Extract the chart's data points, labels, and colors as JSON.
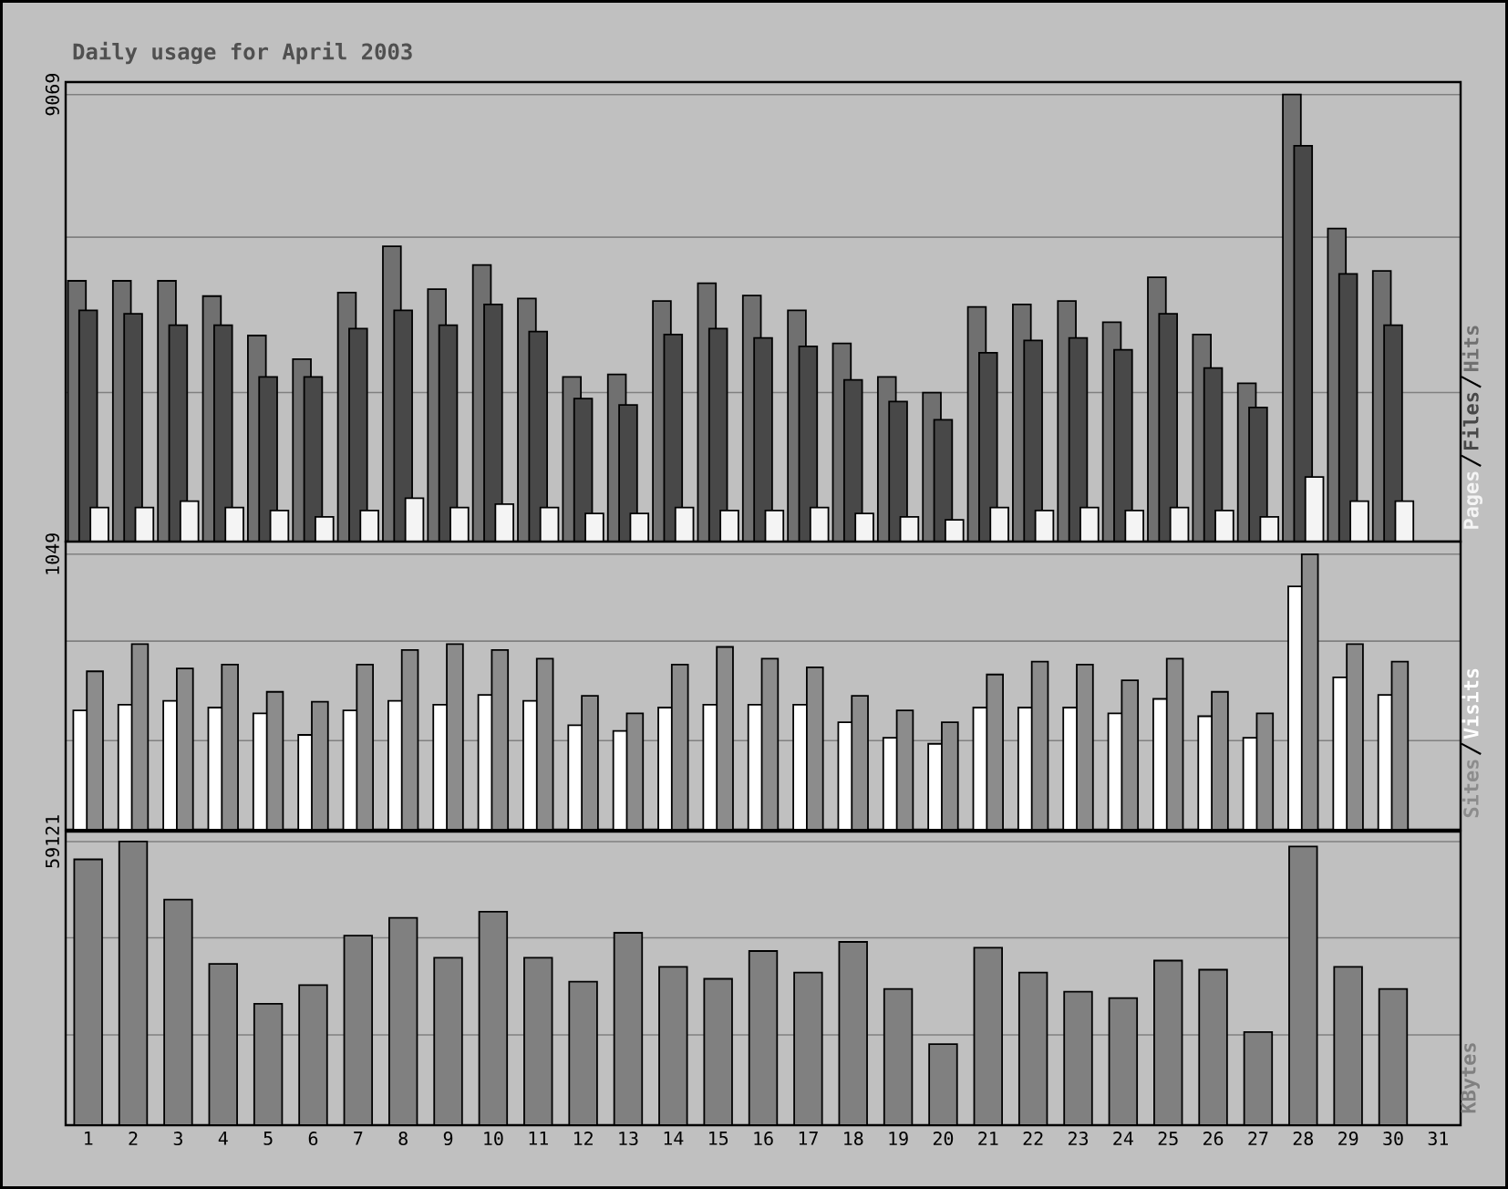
{
  "chart_data": [
    {
      "type": "bar",
      "title": "Daily usage for April 2003",
      "categories": [
        "1",
        "2",
        "3",
        "4",
        "5",
        "6",
        "7",
        "8",
        "9",
        "10",
        "11",
        "12",
        "13",
        "14",
        "15",
        "16",
        "17",
        "18",
        "19",
        "20",
        "21",
        "22",
        "23",
        "24",
        "25",
        "26",
        "27",
        "28",
        "29",
        "30",
        "31"
      ],
      "series": [
        {
          "name": "Hits",
          "color": "#707070",
          "values": [
            5290,
            5290,
            5290,
            4980,
            4180,
            3700,
            5050,
            5990,
            5120,
            5610,
            4930,
            3340,
            3390,
            4880,
            5240,
            4990,
            4690,
            4020,
            3340,
            3020,
            4760,
            4810,
            4880,
            4450,
            5360,
            4200,
            3210,
            9069,
            6350,
            5490,
            null
          ]
        },
        {
          "name": "Files",
          "color": "#484848",
          "values": [
            4690,
            4620,
            4390,
            4390,
            3340,
            3340,
            4320,
            4690,
            4390,
            4810,
            4260,
            2900,
            2770,
            4200,
            4320,
            4130,
            3960,
            3280,
            2840,
            2470,
            3830,
            4080,
            4130,
            3890,
            4620,
            3520,
            2720,
            8030,
            5430,
            4390,
            null
          ]
        },
        {
          "name": "Pages",
          "color": "#f4f4f4",
          "values": [
            690,
            690,
            820,
            690,
            630,
            500,
            630,
            880,
            690,
            760,
            690,
            570,
            570,
            690,
            630,
            630,
            690,
            570,
            500,
            440,
            690,
            630,
            690,
            630,
            690,
            630,
            500,
            1310,
            820,
            820,
            null
          ]
        }
      ],
      "ylim": [
        0,
        9323
      ],
      "yticks": [
        {
          "value": 0,
          "label": null
        },
        {
          "value": 3023,
          "label": null
        },
        {
          "value": 6175,
          "label": null
        },
        9069
      ],
      "grid": "y",
      "tick_labels": "y",
      "legend": "right"
    },
    {
      "type": "bar",
      "categories": [
        "1",
        "2",
        "3",
        "4",
        "5",
        "6",
        "7",
        "8",
        "9",
        "10",
        "11",
        "12",
        "13",
        "14",
        "15",
        "16",
        "17",
        "18",
        "19",
        "20",
        "21",
        "22",
        "23",
        "24",
        "25",
        "26",
        "27",
        "28",
        "29",
        "30",
        "31"
      ],
      "series": [
        {
          "name": "Visits",
          "color": "#ffffff",
          "values": [
            454,
            476,
            491,
            465,
            443,
            361,
            454,
            491,
            476,
            513,
            491,
            398,
            376,
            465,
            476,
            476,
            476,
            409,
            350,
            327,
            465,
            465,
            465,
            443,
            498,
            432,
            350,
            926,
            580,
            513,
            null
          ]
        },
        {
          "name": "Sites",
          "color": "#8c8c8c",
          "values": [
            603,
            707,
            614,
            629,
            525,
            487,
            629,
            684,
            707,
            684,
            651,
            510,
            443,
            629,
            696,
            651,
            618,
            510,
            454,
            409,
            591,
            640,
            629,
            569,
            651,
            525,
            443,
            1049,
            707,
            640,
            null
          ]
        }
      ],
      "ylim": [
        0,
        1097
      ],
      "yticks": [
        {
          "value": 0,
          "label": null
        },
        {
          "value": 339,
          "label": null
        },
        {
          "value": 718,
          "label": null
        },
        1049
      ],
      "grid": "y",
      "tick_labels": "y",
      "legend": "right"
    },
    {
      "type": "bar",
      "categories": [
        "1",
        "2",
        "3",
        "4",
        "5",
        "6",
        "7",
        "8",
        "9",
        "10",
        "11",
        "12",
        "13",
        "14",
        "15",
        "16",
        "17",
        "18",
        "19",
        "20",
        "21",
        "22",
        "23",
        "24",
        "25",
        "26",
        "27",
        "28",
        "29",
        "30",
        "31"
      ],
      "series": [
        {
          "name": "KBytes",
          "color": "#808080",
          "values": [
            55400,
            59121,
            47000,
            33600,
            25300,
            29200,
            39500,
            43200,
            34900,
            44500,
            34900,
            29900,
            40100,
            33000,
            30500,
            36300,
            31800,
            38200,
            28400,
            16900,
            37000,
            31800,
            27800,
            26500,
            34300,
            32400,
            19400,
            58100,
            33000,
            28400,
            null
          ]
        }
      ],
      "ylim": [
        0,
        61208
      ],
      "yticks": [
        {
          "value": 0,
          "label": null
        },
        {
          "value": 18801,
          "label": null
        },
        {
          "value": 39064,
          "label": null
        },
        59121
      ],
      "grid": "y",
      "legend": "right"
    }
  ]
}
